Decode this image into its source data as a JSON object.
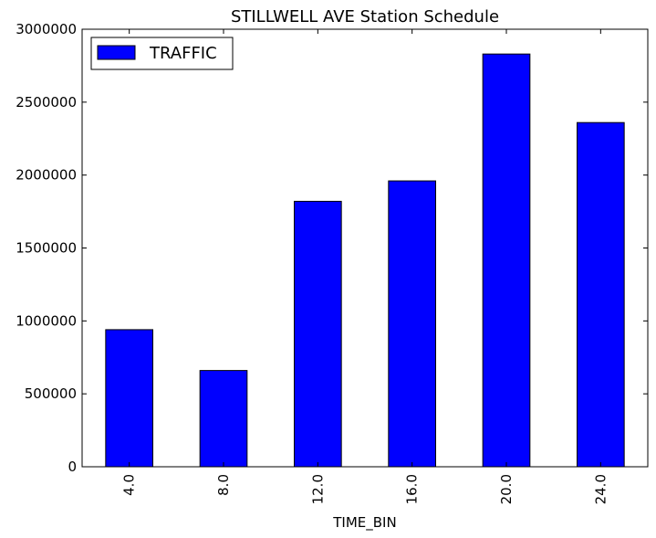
{
  "chart_data": {
    "type": "bar",
    "title": "STILLWELL AVE Station Schedule",
    "xlabel": "TIME_BIN",
    "ylabel": "",
    "categories": [
      "4.0",
      "8.0",
      "12.0",
      "16.0",
      "20.0",
      "24.0"
    ],
    "series": [
      {
        "name": "TRAFFIC",
        "values": [
          940000,
          660000,
          1820000,
          1960000,
          2830000,
          2360000
        ],
        "color": "#0000ff"
      }
    ],
    "ylim": [
      0,
      3000000
    ],
    "yticks": [
      0,
      500000,
      1000000,
      1500000,
      2000000,
      2500000,
      3000000
    ],
    "ytick_labels": [
      "0",
      "500000",
      "1000000",
      "1500000",
      "2000000",
      "2500000",
      "3000000"
    ],
    "xtick_rotation": "vertical",
    "grid": false,
    "legend": {
      "position": "top-left"
    }
  }
}
